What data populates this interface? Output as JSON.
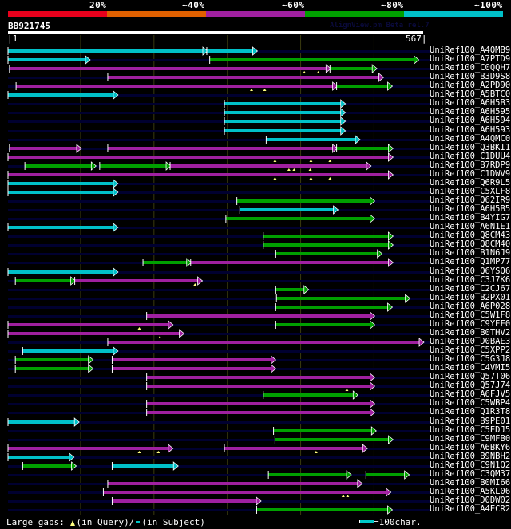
{
  "header": {
    "percent_labels": [
      "20%",
      "~40%",
      "~60%",
      "~80%",
      "~100%"
    ],
    "identity_colors": [
      "#e8001c",
      "#e06000",
      "#a020a0",
      "#00a000",
      "#00c0c8"
    ],
    "query_id": "BB921745",
    "subtitle": "AlignView.pm Beta rel.7",
    "scale_start": "1",
    "scale_end": "567"
  },
  "query_length": 567,
  "colors": {
    "red": "#e8001c",
    "orange": "#e06000",
    "purple": "#a020a0",
    "green": "#00a000",
    "cyan": "#00c0c8",
    "track": "#000030",
    "gap_marker": "#ffff80",
    "grid": "#3a3a10"
  },
  "chart_data": {
    "type": "alignment-map",
    "title": "BB921745",
    "x_range": [
      1,
      567
    ],
    "gridlines": [
      100,
      200,
      300,
      400,
      500
    ],
    "hits": [
      {
        "name": "UniRef100_A4QMB9",
        "segs": [
          [
            1,
            272,
            "cyan"
          ],
          [
            272,
            340,
            "cyan"
          ]
        ],
        "gaps": []
      },
      {
        "name": "UniRef100_A7PTD9",
        "segs": [
          [
            1,
            112,
            "cyan"
          ],
          [
            276,
            560,
            "green"
          ]
        ],
        "gaps": []
      },
      {
        "name": "UniRef100_C0QQH7",
        "segs": [
          [
            3,
            440,
            "purple"
          ],
          [
            440,
            503,
            "green"
          ]
        ],
        "gaps": [
          405,
          424
        ]
      },
      {
        "name": "UniRef100_B3D9S8",
        "segs": [
          [
            137,
            512,
            "purple"
          ]
        ],
        "gaps": []
      },
      {
        "name": "UniRef100_A2PD90",
        "segs": [
          [
            12,
            449,
            "purple"
          ],
          [
            449,
            524,
            "green"
          ]
        ],
        "gaps": [
          333,
          351
        ]
      },
      {
        "name": "UniRef100_A5BTC0",
        "segs": [
          [
            1,
            150,
            "cyan"
          ]
        ],
        "gaps": []
      },
      {
        "name": "UniRef100_A6H5B3",
        "segs": [
          [
            296,
            460,
            "cyan"
          ]
        ],
        "gaps": []
      },
      {
        "name": "UniRef100_A6H595",
        "segs": [
          [
            296,
            460,
            "cyan"
          ]
        ],
        "gaps": []
      },
      {
        "name": "UniRef100_A6H594",
        "segs": [
          [
            296,
            460,
            "cyan"
          ]
        ],
        "gaps": []
      },
      {
        "name": "UniRef100_A6H593",
        "segs": [
          [
            296,
            460,
            "cyan"
          ]
        ],
        "gaps": []
      },
      {
        "name": "UniRef100_A4QMC0",
        "segs": [
          [
            353,
            480,
            "cyan"
          ]
        ],
        "gaps": []
      },
      {
        "name": "UniRef100_Q3BKI1",
        "segs": [
          [
            3,
            100,
            "purple"
          ],
          [
            137,
            449,
            "purple"
          ],
          [
            449,
            525,
            "green"
          ]
        ],
        "gaps": []
      },
      {
        "name": "UniRef100_C1DUU4",
        "segs": [
          [
            1,
            525,
            "purple"
          ]
        ],
        "gaps": [
          365,
          414,
          440
        ]
      },
      {
        "name": "UniRef100_B7RDP9",
        "segs": [
          [
            24,
            120,
            "green"
          ],
          [
            126,
            222,
            "green"
          ],
          [
            222,
            495,
            "purple"
          ]
        ],
        "gaps": [
          384,
          391,
          413
        ]
      },
      {
        "name": "UniRef100_C1DWV9",
        "segs": [
          [
            1,
            525,
            "purple"
          ]
        ],
        "gaps": [
          365,
          414,
          440
        ]
      },
      {
        "name": "UniRef100_Q6R9L5",
        "segs": [
          [
            1,
            150,
            "cyan"
          ]
        ],
        "gaps": []
      },
      {
        "name": "UniRef100_C5XLF8",
        "segs": [
          [
            1,
            150,
            "cyan"
          ]
        ],
        "gaps": []
      },
      {
        "name": "UniRef100_Q62IR9",
        "segs": [
          [
            313,
            500,
            "green"
          ]
        ],
        "gaps": []
      },
      {
        "name": "UniRef100_A6H5B5",
        "segs": [
          [
            317,
            450,
            "cyan"
          ]
        ],
        "gaps": []
      },
      {
        "name": "UniRef100_B4YIG7",
        "segs": [
          [
            298,
            500,
            "green"
          ]
        ],
        "gaps": []
      },
      {
        "name": "UniRef100_A6N1E1",
        "segs": [
          [
            1,
            150,
            "cyan"
          ]
        ],
        "gaps": []
      },
      {
        "name": "UniRef100_Q8CM43",
        "segs": [
          [
            349,
            525,
            "green"
          ]
        ],
        "gaps": []
      },
      {
        "name": "UniRef100_Q8CM40",
        "segs": [
          [
            349,
            525,
            "green"
          ]
        ],
        "gaps": []
      },
      {
        "name": "UniRef100_B1N6J9",
        "segs": [
          [
            366,
            510,
            "green"
          ]
        ],
        "gaps": []
      },
      {
        "name": "UniRef100_Q1MP77",
        "segs": [
          [
            185,
            250,
            "green"
          ],
          [
            250,
            525,
            "purple"
          ]
        ],
        "gaps": []
      },
      {
        "name": "UniRef100_Q6YSQ6",
        "segs": [
          [
            1,
            150,
            "cyan"
          ]
        ],
        "gaps": []
      },
      {
        "name": "UniRef100_C3J7K6",
        "segs": [
          [
            11,
            92,
            "green"
          ],
          [
            92,
            265,
            "purple"
          ]
        ],
        "gaps": [
          256
        ]
      },
      {
        "name": "UniRef100_C2CJ67",
        "segs": [
          [
            366,
            410,
            "green"
          ]
        ],
        "gaps": []
      },
      {
        "name": "UniRef100_B2PX01",
        "segs": [
          [
            367,
            548,
            "green"
          ]
        ],
        "gaps": []
      },
      {
        "name": "UniRef100_A6P028",
        "segs": [
          [
            366,
            524,
            "green"
          ]
        ],
        "gaps": []
      },
      {
        "name": "UniRef100_C5W1F8",
        "segs": [
          [
            190,
            500,
            "purple"
          ]
        ],
        "gaps": []
      },
      {
        "name": "UniRef100_C9YEF0",
        "segs": [
          [
            1,
            225,
            "purple"
          ],
          [
            366,
            500,
            "green"
          ]
        ],
        "gaps": [
          180
        ]
      },
      {
        "name": "UniRef100_B0THV2",
        "segs": [
          [
            1,
            240,
            "purple"
          ]
        ],
        "gaps": [
          208
        ]
      },
      {
        "name": "UniRef100_D0BAE3",
        "segs": [
          [
            137,
            567,
            "purple"
          ]
        ],
        "gaps": []
      },
      {
        "name": "UniRef100_C5XPP2",
        "segs": [
          [
            21,
            150,
            "cyan"
          ]
        ],
        "gaps": []
      },
      {
        "name": "UniRef100_C5G3J8",
        "segs": [
          [
            11,
            116,
            "green"
          ],
          [
            143,
            365,
            "purple"
          ]
        ],
        "gaps": []
      },
      {
        "name": "UniRef100_C4VMI5",
        "segs": [
          [
            11,
            116,
            "green"
          ],
          [
            143,
            365,
            "purple"
          ]
        ],
        "gaps": []
      },
      {
        "name": "UniRef100_Q57T06",
        "segs": [
          [
            190,
            500,
            "purple"
          ]
        ],
        "gaps": []
      },
      {
        "name": "UniRef100_Q57J74",
        "segs": [
          [
            190,
            500,
            "purple"
          ]
        ],
        "gaps": [
          463
        ]
      },
      {
        "name": "UniRef100_A6FJV5",
        "segs": [
          [
            349,
            477,
            "green"
          ]
        ],
        "gaps": []
      },
      {
        "name": "UniRef100_C5WBP4",
        "segs": [
          [
            190,
            500,
            "purple"
          ]
        ],
        "gaps": []
      },
      {
        "name": "UniRef100_Q1R3T8",
        "segs": [
          [
            190,
            500,
            "purple"
          ]
        ],
        "gaps": []
      },
      {
        "name": "UniRef100_B9PE01",
        "segs": [
          [
            1,
            97,
            "cyan"
          ]
        ],
        "gaps": []
      },
      {
        "name": "UniRef100_C5EDJ5",
        "segs": [
          [
            363,
            502,
            "green"
          ]
        ],
        "gaps": []
      },
      {
        "name": "UniRef100_C9MFB0",
        "segs": [
          [
            365,
            525,
            "green"
          ]
        ],
        "gaps": []
      },
      {
        "name": "UniRef100_A6BKY6",
        "segs": [
          [
            1,
            225,
            "purple"
          ],
          [
            296,
            490,
            "purple"
          ]
        ],
        "gaps": [
          180,
          206,
          421
        ]
      },
      {
        "name": "UniRef100_B9NBH2",
        "segs": [
          [
            1,
            90,
            "cyan"
          ]
        ],
        "gaps": []
      },
      {
        "name": "UniRef100_C9N1Q2",
        "segs": [
          [
            21,
            93,
            "green"
          ],
          [
            143,
            232,
            "cyan"
          ]
        ],
        "gaps": []
      },
      {
        "name": "UniRef100_C3QM37",
        "segs": [
          [
            356,
            468,
            "green"
          ],
          [
            489,
            547,
            "green"
          ]
        ],
        "gaps": []
      },
      {
        "name": "UniRef100_B0MI66",
        "segs": [
          [
            137,
            483,
            "purple"
          ]
        ],
        "gaps": []
      },
      {
        "name": "UniRef100_A5KL06",
        "segs": [
          [
            131,
            522,
            "purple"
          ]
        ],
        "gaps": [
          458,
          464
        ]
      },
      {
        "name": "UniRef100_D0DW02",
        "segs": [
          [
            143,
            345,
            "purple"
          ]
        ],
        "gaps": []
      },
      {
        "name": "UniRef100_A4ECR2",
        "segs": [
          [
            340,
            524,
            "green"
          ]
        ],
        "gaps": []
      }
    ]
  },
  "footer": {
    "gaps_label": "Large gaps:",
    "in_query": "(in Query)/",
    "in_subject": "(in Subject)",
    "scale_key": "=100char."
  }
}
